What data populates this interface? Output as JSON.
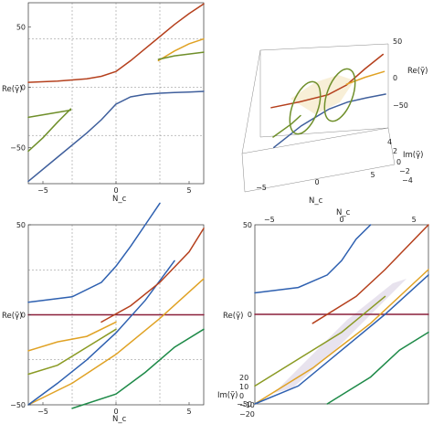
{
  "colors": {
    "red": "#b5401d",
    "green": "#8a9a23",
    "orange": "#e0a224",
    "navy": "#3f5f9c",
    "blue": "#2e60b0",
    "maroon": "#8a1f3a",
    "olive": "#6f8f2a",
    "darkgreen": "#1e8a48",
    "gray": "#555555"
  },
  "chart_data": [
    {
      "id": "top-left",
      "type": "line",
      "xlabel": "N_c",
      "ylabel": "Re(γ̃)",
      "xlim": [
        -6,
        6
      ],
      "ylim": [
        -80,
        70
      ],
      "xticks": [
        -5,
        0,
        5
      ],
      "yticks": [
        -50,
        0,
        50
      ],
      "tick_labels": {
        "x": [
          "−5",
          "0",
          "5"
        ],
        "y": [
          "−50",
          "0",
          "50"
        ]
      },
      "grid": {
        "x": [
          -3,
          0,
          3
        ],
        "y": [
          -40,
          0,
          40
        ]
      },
      "series": [
        {
          "color": "red",
          "x": [
            -6,
            -4,
            -2,
            -1,
            0,
            1,
            2,
            3,
            4,
            5,
            6
          ],
          "y": [
            4,
            5,
            7,
            9,
            13,
            22,
            32,
            42,
            52,
            61,
            69
          ]
        },
        {
          "color": "navy",
          "x": [
            -6,
            -4,
            -2,
            -1,
            0,
            1,
            2,
            3,
            4,
            5,
            6
          ],
          "y": [
            -78,
            -58,
            -38,
            -27,
            -14,
            -8,
            -6,
            -5,
            -4.5,
            -4,
            -3.5
          ]
        },
        {
          "color": "olive",
          "x": [
            -6,
            -5,
            -4,
            -3.1
          ],
          "y": [
            -53,
            -42,
            -29,
            -18
          ]
        },
        {
          "color": "olive",
          "x": [
            -6,
            -3.1
          ],
          "y": [
            -25,
            -19
          ]
        },
        {
          "color": "orange",
          "x": [
            2.9,
            4,
            5,
            6
          ],
          "y": [
            22,
            30,
            36,
            40
          ]
        },
        {
          "color": "olive",
          "x": [
            2.9,
            4,
            6
          ],
          "y": [
            23,
            26,
            29
          ]
        }
      ]
    },
    {
      "id": "top-right",
      "type": "line",
      "xlabel": "N_c",
      "ylabel": "Re(γ̃)",
      "zlabel": "Im(γ̃)",
      "xlim": [
        -6,
        6
      ],
      "ylim": [
        -60,
        60
      ],
      "zlim": [
        -4,
        4
      ],
      "xticks": [
        -5,
        0,
        5
      ],
      "yticks": [
        -50,
        0,
        50
      ],
      "zticks": [
        -4,
        -2,
        0,
        2,
        4
      ],
      "tick_labels": {
        "x": [
          "−5",
          "0",
          "5"
        ],
        "y": [
          "−50",
          "0",
          "50"
        ],
        "z": [
          "−4",
          "−2",
          "0",
          "2",
          "4"
        ]
      },
      "series": [
        {
          "color": "red",
          "x": [
            -6,
            -3,
            0,
            2,
            4,
            6
          ],
          "y": [
            3,
            5,
            9,
            19,
            38,
            55
          ]
        },
        {
          "color": "navy",
          "x": [
            -6,
            -3,
            0,
            2,
            4,
            6
          ],
          "y": [
            -55,
            -30,
            -12,
            -6,
            -4,
            -3
          ]
        },
        {
          "color": "olive",
          "x": [
            -6,
            -4,
            -3
          ],
          "y": [
            -40,
            -25,
            -15
          ]
        },
        {
          "color": "orange",
          "x": [
            2,
            4,
            6
          ],
          "y": [
            20,
            26,
            30
          ]
        }
      ],
      "loops": [
        {
          "color": "olive",
          "center_x": -2,
          "center_y": -5
        },
        {
          "color": "olive",
          "center_x": 2,
          "center_y": 10
        }
      ]
    },
    {
      "id": "bottom-left",
      "type": "line",
      "xlabel": "N_c",
      "ylabel": "Re(γ̃)",
      "xlim": [
        -6,
        6
      ],
      "ylim": [
        -50,
        50
      ],
      "xticks": [
        -5,
        0,
        5
      ],
      "yticks": [
        -50,
        0,
        50
      ],
      "tick_labels": {
        "x": [
          "−5",
          "0",
          "5"
        ],
        "y": [
          "−50",
          "0",
          "50"
        ]
      },
      "grid": {
        "x": [
          -3,
          0,
          3
        ],
        "y": [
          -25,
          0,
          25
        ]
      },
      "series": [
        {
          "color": "maroon",
          "x": [
            -6,
            6
          ],
          "y": [
            0,
            0
          ]
        },
        {
          "color": "blue",
          "x": [
            -6,
            -3,
            -1,
            0,
            1,
            2,
            3
          ],
          "y": [
            7,
            10,
            18,
            27,
            38,
            50,
            62
          ]
        },
        {
          "color": "orange",
          "x": [
            -6,
            -3,
            0,
            3,
            6
          ],
          "y": [
            -50,
            -38,
            -22,
            -2,
            20
          ]
        },
        {
          "color": "blue",
          "x": [
            -6,
            -4,
            -2,
            0,
            2,
            4
          ],
          "y": [
            -50,
            -38,
            -25,
            -10,
            8,
            30
          ]
        },
        {
          "color": "darkgreen",
          "x": [
            -3,
            0,
            2,
            4,
            6
          ],
          "y": [
            -52,
            -44,
            -32,
            -18,
            -8
          ]
        },
        {
          "color": "green",
          "x": [
            -6,
            -4,
            -2,
            0
          ],
          "y": [
            -33,
            -28,
            -18,
            -8
          ]
        },
        {
          "color": "red",
          "x": [
            -1,
            1,
            3,
            5,
            6
          ],
          "y": [
            -4,
            5,
            18,
            35,
            48
          ]
        },
        {
          "color": "orange",
          "x": [
            -6,
            -4,
            -2,
            0
          ],
          "y": [
            -20,
            -15,
            -12,
            -4
          ]
        }
      ]
    },
    {
      "id": "bottom-right",
      "type": "line",
      "xlabel": "N_c",
      "ylabel": "Re(γ̃)",
      "zlabel": "Im(γ̃)",
      "xlim": [
        -6,
        6
      ],
      "ylim": [
        -50,
        50
      ],
      "zlim": [
        -20,
        20
      ],
      "xticks": [
        -5,
        0,
        5
      ],
      "yticks": [
        -50,
        0,
        50
      ],
      "zticks": [
        -20,
        -10,
        0,
        10,
        20
      ],
      "tick_labels": {
        "x": [
          "−5",
          "0",
          "5"
        ],
        "y": [
          "−50",
          "0",
          "50"
        ],
        "z": [
          "−20",
          "−10",
          "0",
          "10",
          "20"
        ]
      },
      "series": [
        {
          "color": "maroon",
          "x": [
            -6,
            6
          ],
          "y": [
            0,
            0
          ]
        },
        {
          "color": "blue",
          "x": [
            -6,
            -3,
            -1,
            0,
            1,
            2
          ],
          "y": [
            12,
            15,
            22,
            30,
            42,
            55
          ]
        },
        {
          "color": "orange",
          "x": [
            -6,
            -2,
            2,
            6
          ],
          "y": [
            -55,
            -30,
            -5,
            25
          ]
        },
        {
          "color": "blue",
          "x": [
            -6,
            -3,
            0,
            3,
            6
          ],
          "y": [
            -55,
            -40,
            -20,
            0,
            22
          ]
        },
        {
          "color": "darkgreen",
          "x": [
            -1,
            2,
            4,
            6
          ],
          "y": [
            -50,
            -35,
            -20,
            -10
          ]
        },
        {
          "color": "red",
          "x": [
            -2,
            1,
            3,
            6
          ],
          "y": [
            -5,
            10,
            25,
            50
          ]
        },
        {
          "color": "green",
          "x": [
            -6,
            -3,
            0,
            3
          ],
          "y": [
            -40,
            -25,
            -10,
            10
          ]
        }
      ]
    }
  ]
}
